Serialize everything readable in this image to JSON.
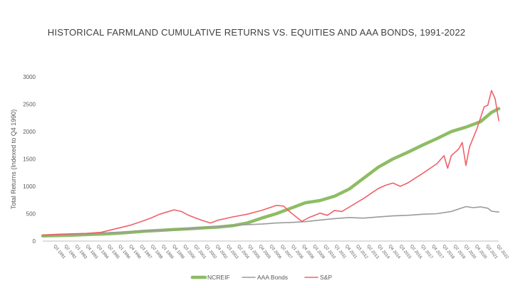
{
  "chart_data": {
    "type": "line",
    "title": "HISTORICAL FARMLAND CUMULATIVE RETURNS VS. EQUITIES AND AAA BONDS, 1991-2022",
    "ylabel": "Total Returns (Indexed to Q4 1990)",
    "xlabel": "",
    "ylim": [
      0,
      3000
    ],
    "yticks": [
      "0",
      "500",
      "1000",
      "1500",
      "2000",
      "2500",
      "3000"
    ],
    "grid": false,
    "legend_position": "bottom",
    "x_tick_labels": [
      "Q3 1991",
      "Q2 1992",
      "Q1 1993",
      "Q4 1993",
      "Q3 1994",
      "Q2 1995",
      "Q1 1996",
      "Q4 1996",
      "Q3 1997",
      "Q2 1998",
      "Q1 1999",
      "Q4 1999",
      "Q3 2000",
      "Q2 2001",
      "Q1 2002",
      "Q4 2002",
      "Q3 2003",
      "Q2 2004",
      "Q1 2005",
      "Q4 2005",
      "Q3 2006",
      "Q2 2007",
      "Q1 2008",
      "Q4 2008",
      "Q3 2009",
      "Q2 2010",
      "Q1 2011",
      "Q4 2011",
      "Q3 2012",
      "Q2 2013",
      "Q1 2014",
      "Q4 2014",
      "Q3 2015",
      "Q2 2016",
      "Q1 2017",
      "Q4 2017",
      "Q3 2018",
      "Q2 2019",
      "Q1 2020",
      "Q4 2020",
      "Q3 2021",
      "Q2 2022"
    ],
    "x_start": 1991.0,
    "x_end": 2022.25,
    "series": [
      {
        "name": "NCREIF",
        "color": "#8dbd64",
        "points": [
          [
            1991.0,
            95
          ],
          [
            1992.0,
            100
          ],
          [
            1993.0,
            108
          ],
          [
            1994.0,
            118
          ],
          [
            1995.0,
            128
          ],
          [
            1996.0,
            140
          ],
          [
            1997.0,
            160
          ],
          [
            1998.0,
            180
          ],
          [
            1999.0,
            195
          ],
          [
            2000.0,
            210
          ],
          [
            2001.0,
            225
          ],
          [
            2002.0,
            240
          ],
          [
            2003.0,
            255
          ],
          [
            2004.0,
            280
          ],
          [
            2005.0,
            330
          ],
          [
            2006.0,
            420
          ],
          [
            2007.0,
            500
          ],
          [
            2008.0,
            600
          ],
          [
            2009.0,
            700
          ],
          [
            2010.0,
            740
          ],
          [
            2011.0,
            820
          ],
          [
            2012.0,
            950
          ],
          [
            2013.0,
            1150
          ],
          [
            2014.0,
            1350
          ],
          [
            2015.0,
            1500
          ],
          [
            2016.0,
            1620
          ],
          [
            2017.0,
            1750
          ],
          [
            2018.0,
            1870
          ],
          [
            2019.0,
            2000
          ],
          [
            2020.0,
            2080
          ],
          [
            2021.0,
            2180
          ],
          [
            2021.75,
            2350
          ],
          [
            2022.25,
            2420
          ]
        ]
      },
      {
        "name": "AAA Bonds",
        "color": "#9b9b9b",
        "points": [
          [
            1991.0,
            100
          ],
          [
            1992.0,
            112
          ],
          [
            1993.0,
            125
          ],
          [
            1994.0,
            132
          ],
          [
            1995.0,
            145
          ],
          [
            1996.0,
            160
          ],
          [
            1997.0,
            172
          ],
          [
            1998.0,
            188
          ],
          [
            1999.0,
            195
          ],
          [
            2000.0,
            210
          ],
          [
            2001.0,
            225
          ],
          [
            2002.0,
            248
          ],
          [
            2003.0,
            270
          ],
          [
            2004.0,
            285
          ],
          [
            2005.0,
            300
          ],
          [
            2006.0,
            310
          ],
          [
            2007.0,
            330
          ],
          [
            2008.0,
            340
          ],
          [
            2009.0,
            355
          ],
          [
            2010.0,
            385
          ],
          [
            2011.0,
            410
          ],
          [
            2012.0,
            430
          ],
          [
            2013.0,
            420
          ],
          [
            2014.0,
            440
          ],
          [
            2015.0,
            460
          ],
          [
            2016.0,
            470
          ],
          [
            2017.0,
            490
          ],
          [
            2018.0,
            500
          ],
          [
            2019.0,
            540
          ],
          [
            2020.0,
            630
          ],
          [
            2020.5,
            610
          ],
          [
            2021.0,
            625
          ],
          [
            2021.5,
            600
          ],
          [
            2021.75,
            545
          ],
          [
            2022.25,
            530
          ]
        ]
      },
      {
        "name": "S&P",
        "color": "#f0616a",
        "points": [
          [
            1991.0,
            110
          ],
          [
            1992.0,
            125
          ],
          [
            1993.0,
            132
          ],
          [
            1994.0,
            140
          ],
          [
            1995.0,
            160
          ],
          [
            1996.0,
            225
          ],
          [
            1997.0,
            290
          ],
          [
            1998.0,
            380
          ],
          [
            1998.5,
            430
          ],
          [
            1999.0,
            490
          ],
          [
            1999.5,
            530
          ],
          [
            2000.0,
            570
          ],
          [
            2000.5,
            540
          ],
          [
            2001.0,
            470
          ],
          [
            2001.5,
            420
          ],
          [
            2002.0,
            370
          ],
          [
            2002.5,
            330
          ],
          [
            2003.0,
            380
          ],
          [
            2004.0,
            440
          ],
          [
            2005.0,
            490
          ],
          [
            2006.0,
            560
          ],
          [
            2007.0,
            650
          ],
          [
            2007.5,
            640
          ],
          [
            2008.0,
            520
          ],
          [
            2008.75,
            360
          ],
          [
            2009.25,
            430
          ],
          [
            2010.0,
            510
          ],
          [
            2010.5,
            470
          ],
          [
            2011.0,
            560
          ],
          [
            2011.5,
            540
          ],
          [
            2012.0,
            620
          ],
          [
            2013.0,
            780
          ],
          [
            2014.0,
            960
          ],
          [
            2014.5,
            1020
          ],
          [
            2015.0,
            1060
          ],
          [
            2015.5,
            1000
          ],
          [
            2016.0,
            1060
          ],
          [
            2017.0,
            1230
          ],
          [
            2018.0,
            1410
          ],
          [
            2018.5,
            1560
          ],
          [
            2018.75,
            1330
          ],
          [
            2019.0,
            1560
          ],
          [
            2019.5,
            1680
          ],
          [
            2019.75,
            1800
          ],
          [
            2020.0,
            1380
          ],
          [
            2020.25,
            1720
          ],
          [
            2020.75,
            2050
          ],
          [
            2021.0,
            2250
          ],
          [
            2021.25,
            2450
          ],
          [
            2021.5,
            2480
          ],
          [
            2021.75,
            2750
          ],
          [
            2022.0,
            2600
          ],
          [
            2022.25,
            2200
          ]
        ]
      }
    ]
  }
}
